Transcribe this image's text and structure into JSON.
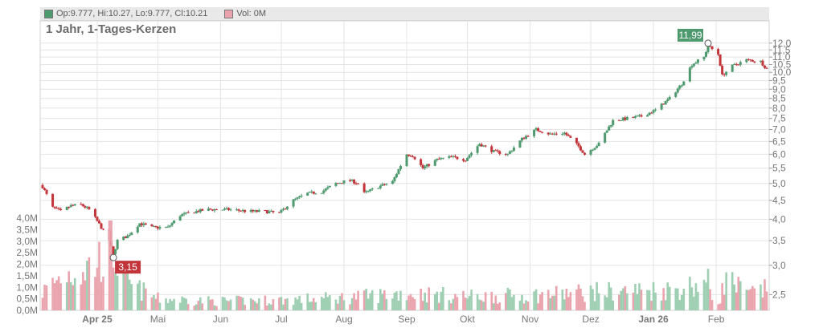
{
  "legend": {
    "ohlc_label": "Op:9.777, Hi:10.27, Lo:9.777, Cl:10.21",
    "vol_label": "Vol: 0M"
  },
  "colors": {
    "up": "#4e9a6e",
    "down": "#c2353b",
    "vol_up": "#9fcfb3",
    "vol_down": "#eaa4ae",
    "grid": "#e4e4e4"
  },
  "chart_data": {
    "type": "candlestick",
    "title": "1 Jahr, 1-Tages-Kerzen",
    "price_axis": {
      "scale": "log",
      "ticks": [
        "2,5",
        "3,0",
        "3,5",
        "4,0",
        "4,5",
        "5,0",
        "5,5",
        "6,0",
        "6,5",
        "7,0",
        "7,5",
        "8,0",
        "8,5",
        "9,0",
        "9,5",
        "10,0",
        "10,5",
        "11,0",
        "11,5",
        "12,0"
      ],
      "tick_values": [
        2.5,
        3.0,
        3.5,
        4.0,
        4.5,
        5.0,
        5.5,
        6.0,
        6.5,
        7.0,
        7.5,
        8.0,
        8.5,
        9.0,
        9.5,
        10.0,
        10.5,
        11.0,
        11.5,
        12.0
      ],
      "range": [
        2.3,
        12.6
      ]
    },
    "volume_axis": {
      "ticks": [
        "0,0M",
        "0,5M",
        "1,0M",
        "1,5M",
        "2,0M",
        "2,5M",
        "3,0M",
        "3,5M",
        "4,0M"
      ],
      "tick_values": [
        0,
        0.5,
        1.0,
        1.5,
        2.0,
        2.5,
        3.0,
        3.5,
        4.0
      ],
      "range": [
        0,
        4.0
      ]
    },
    "x_axis": {
      "labels": [
        "Apr 25",
        "Mai",
        "Jun",
        "Jul",
        "Aug",
        "Sep",
        "Okt",
        "Nov",
        "Dez",
        "Jan 26",
        "Feb"
      ],
      "bold": [
        true,
        false,
        false,
        false,
        false,
        false,
        false,
        false,
        false,
        true,
        false
      ],
      "start_date": "2025-03-05",
      "end_date": "2026-02-26",
      "label_dates": [
        "2025-04-01",
        "2025-05-01",
        "2025-06-01",
        "2025-07-01",
        "2025-08-01",
        "2025-09-01",
        "2025-10-01",
        "2025-11-01",
        "2025-12-01",
        "2026-01-01",
        "2026-02-01"
      ]
    },
    "close_anchors": [
      [
        "2025-03-05",
        4.9
      ],
      [
        "2025-03-10",
        4.3
      ],
      [
        "2025-03-14",
        4.2
      ],
      [
        "2025-03-19",
        4.35
      ],
      [
        "2025-03-24",
        4.38
      ],
      [
        "2025-03-28",
        4.25
      ],
      [
        "2025-04-03",
        3.8
      ],
      [
        "2025-04-07",
        3.5
      ],
      [
        "2025-04-09",
        3.2
      ],
      [
        "2025-04-11",
        3.5
      ],
      [
        "2025-04-16",
        3.6
      ],
      [
        "2025-04-22",
        3.9
      ],
      [
        "2025-04-28",
        3.8
      ],
      [
        "2025-05-06",
        3.8
      ],
      [
        "2025-05-12",
        4.1
      ],
      [
        "2025-05-20",
        4.2
      ],
      [
        "2025-05-26",
        4.25
      ],
      [
        "2025-06-05",
        4.25
      ],
      [
        "2025-06-16",
        4.2
      ],
      [
        "2025-06-23",
        4.2
      ],
      [
        "2025-06-30",
        4.15
      ],
      [
        "2025-07-07",
        4.5
      ],
      [
        "2025-07-14",
        4.7
      ],
      [
        "2025-07-21",
        4.75
      ],
      [
        "2025-07-28",
        5.0
      ],
      [
        "2025-08-04",
        5.1
      ],
      [
        "2025-08-08",
        5.0
      ],
      [
        "2025-08-11",
        4.7
      ],
      [
        "2025-08-18",
        4.9
      ],
      [
        "2025-08-25",
        5.05
      ],
      [
        "2025-09-01",
        6.0
      ],
      [
        "2025-09-04",
        5.95
      ],
      [
        "2025-09-09",
        5.5
      ],
      [
        "2025-09-16",
        5.8
      ],
      [
        "2025-09-23",
        5.9
      ],
      [
        "2025-09-30",
        5.8
      ],
      [
        "2025-10-07",
        6.4
      ],
      [
        "2025-10-14",
        6.1
      ],
      [
        "2025-10-21",
        6.0
      ],
      [
        "2025-10-28",
        6.6
      ],
      [
        "2025-11-04",
        7.0
      ],
      [
        "2025-11-11",
        6.8
      ],
      [
        "2025-11-18",
        6.85
      ],
      [
        "2025-11-25",
        6.3
      ],
      [
        "2025-11-28",
        6.0
      ],
      [
        "2025-12-05",
        6.4
      ],
      [
        "2025-12-12",
        7.4
      ],
      [
        "2025-12-19",
        7.5
      ],
      [
        "2025-12-26",
        7.6
      ],
      [
        "2026-01-02",
        7.9
      ],
      [
        "2026-01-09",
        8.5
      ],
      [
        "2026-01-15",
        9.3
      ],
      [
        "2026-01-20",
        10.5
      ],
      [
        "2026-01-26",
        11.0
      ],
      [
        "2026-01-28",
        11.8
      ],
      [
        "2026-02-02",
        11.2
      ],
      [
        "2026-02-04",
        9.8
      ],
      [
        "2026-02-09",
        10.4
      ],
      [
        "2026-02-16",
        10.8
      ],
      [
        "2026-02-23",
        10.7
      ],
      [
        "2026-02-26",
        10.21
      ]
    ],
    "volume_anchors": [
      [
        "2025-03-05",
        0.8
      ],
      [
        "2025-03-15",
        1.5
      ],
      [
        "2025-03-31",
        2.0
      ],
      [
        "2025-04-08",
        2.8
      ],
      [
        "2025-04-15",
        1.2
      ],
      [
        "2025-05-01",
        0.5
      ],
      [
        "2025-06-01",
        0.4
      ],
      [
        "2025-07-01",
        0.45
      ],
      [
        "2025-08-01",
        0.55
      ],
      [
        "2025-09-01",
        0.75
      ],
      [
        "2025-10-01",
        0.6
      ],
      [
        "2025-11-01",
        0.65
      ],
      [
        "2025-12-01",
        0.8
      ],
      [
        "2026-01-10",
        0.9
      ],
      [
        "2026-01-28",
        1.2
      ],
      [
        "2026-02-01",
        0.05
      ],
      [
        "2026-02-06",
        1.4
      ],
      [
        "2026-02-16",
        0.7
      ],
      [
        "2026-02-26",
        0.9
      ]
    ],
    "markers": [
      {
        "label": "11,99",
        "value": 11.99,
        "date": "2026-01-28",
        "color": "#4e9a6e"
      },
      {
        "label": "3,15",
        "value": 3.15,
        "date": "2025-04-09",
        "color": "#c2353b"
      }
    ]
  }
}
